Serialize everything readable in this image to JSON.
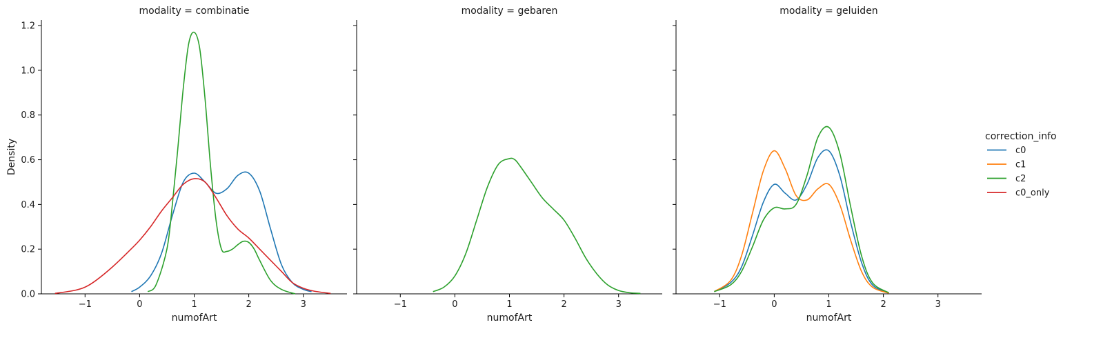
{
  "chart_data": {
    "type": "line",
    "kind": "kde",
    "facet_variable": "modality",
    "xlabel": "numofArt",
    "ylabel": "Density",
    "xlim": [
      -1.8,
      3.8
    ],
    "ylim": [
      0.0,
      1.225
    ],
    "xticks": [
      -1,
      0,
      1,
      2,
      3
    ],
    "yticks": [
      0.0,
      0.2,
      0.4,
      0.6,
      0.8,
      1.0,
      1.2
    ],
    "xtick_labels": [
      "−1",
      "0",
      "1",
      "2",
      "3"
    ],
    "ytick_labels": [
      "0.0",
      "0.2",
      "0.4",
      "0.6",
      "0.8",
      "1.0",
      "1.2"
    ],
    "shared_y": true,
    "grid": false,
    "legend": {
      "title": "correction_info",
      "placement": "right",
      "entries": [
        {
          "name": "c0",
          "color": "#1f77b4"
        },
        {
          "name": "c1",
          "color": "#ff7f0e"
        },
        {
          "name": "c2",
          "color": "#2ca02c"
        },
        {
          "name": "c0_only",
          "color": "#d62728"
        }
      ]
    },
    "panels": [
      {
        "title": "modality = combinatie",
        "series": [
          {
            "name": "c0",
            "color": "#1f77b4",
            "x": [
              -0.15,
              0.0,
              0.2,
              0.4,
              0.6,
              0.8,
              1.0,
              1.2,
              1.4,
              1.6,
              1.8,
              2.0,
              2.2,
              2.4,
              2.6,
              2.8,
              3.0,
              3.15
            ],
            "y": [
              0.01,
              0.03,
              0.08,
              0.18,
              0.35,
              0.5,
              0.54,
              0.5,
              0.45,
              0.47,
              0.53,
              0.54,
              0.46,
              0.29,
              0.13,
              0.05,
              0.02,
              0.01
            ]
          },
          {
            "name": "c2",
            "color": "#2ca02c",
            "x": [
              0.15,
              0.3,
              0.5,
              0.6,
              0.7,
              0.8,
              0.9,
              1.0,
              1.1,
              1.2,
              1.3,
              1.4,
              1.5,
              1.6,
              1.7,
              1.8,
              1.9,
              2.0,
              2.1,
              2.2,
              2.4,
              2.6,
              2.85
            ],
            "y": [
              0.01,
              0.04,
              0.2,
              0.4,
              0.65,
              0.92,
              1.12,
              1.17,
              1.1,
              0.87,
              0.57,
              0.33,
              0.2,
              0.19,
              0.2,
              0.22,
              0.235,
              0.23,
              0.2,
              0.15,
              0.06,
              0.02,
              0.0
            ]
          },
          {
            "name": "c0_only",
            "color": "#d62728",
            "x": [
              -1.55,
              -1.2,
              -1.0,
              -0.8,
              -0.5,
              -0.2,
              0.0,
              0.2,
              0.4,
              0.6,
              0.8,
              1.0,
              1.2,
              1.4,
              1.6,
              1.8,
              2.0,
              2.2,
              2.4,
              2.6,
              2.8,
              3.0,
              3.2,
              3.5
            ],
            "y": [
              0.002,
              0.015,
              0.03,
              0.06,
              0.12,
              0.19,
              0.24,
              0.3,
              0.37,
              0.43,
              0.49,
              0.515,
              0.5,
              0.43,
              0.35,
              0.29,
              0.25,
              0.2,
              0.15,
              0.1,
              0.05,
              0.025,
              0.012,
              0.002
            ]
          }
        ]
      },
      {
        "title": "modality = gebaren",
        "series": [
          {
            "name": "c2",
            "color": "#2ca02c",
            "x": [
              -0.4,
              -0.2,
              0.0,
              0.2,
              0.4,
              0.6,
              0.8,
              1.0,
              1.1,
              1.2,
              1.4,
              1.6,
              1.8,
              2.0,
              2.2,
              2.4,
              2.6,
              2.8,
              3.0,
              3.2,
              3.4
            ],
            "y": [
              0.01,
              0.03,
              0.08,
              0.18,
              0.33,
              0.48,
              0.58,
              0.605,
              0.6,
              0.57,
              0.5,
              0.43,
              0.38,
              0.33,
              0.25,
              0.16,
              0.09,
              0.04,
              0.015,
              0.005,
              0.002
            ]
          }
        ]
      },
      {
        "title": "modality = geluiden",
        "series": [
          {
            "name": "c0",
            "color": "#1f77b4",
            "x": [
              -1.1,
              -0.8,
              -0.6,
              -0.4,
              -0.2,
              0.0,
              0.2,
              0.4,
              0.6,
              0.8,
              1.0,
              1.2,
              1.4,
              1.6,
              1.8,
              2.1
            ],
            "y": [
              0.01,
              0.05,
              0.12,
              0.26,
              0.41,
              0.49,
              0.45,
              0.42,
              0.49,
              0.61,
              0.64,
              0.53,
              0.32,
              0.14,
              0.04,
              0.005
            ]
          },
          {
            "name": "c1",
            "color": "#ff7f0e",
            "x": [
              -1.1,
              -0.8,
              -0.6,
              -0.4,
              -0.2,
              0.0,
              0.2,
              0.4,
              0.6,
              0.8,
              1.0,
              1.2,
              1.4,
              1.6,
              1.8,
              2.1
            ],
            "y": [
              0.01,
              0.06,
              0.17,
              0.36,
              0.55,
              0.64,
              0.56,
              0.44,
              0.42,
              0.47,
              0.49,
              0.4,
              0.24,
              0.1,
              0.03,
              0.003
            ]
          },
          {
            "name": "c2",
            "color": "#2ca02c",
            "x": [
              -1.1,
              -0.8,
              -0.6,
              -0.4,
              -0.2,
              0.0,
              0.2,
              0.4,
              0.6,
              0.8,
              1.0,
              1.2,
              1.4,
              1.6,
              1.8,
              2.1
            ],
            "y": [
              0.01,
              0.04,
              0.1,
              0.21,
              0.33,
              0.385,
              0.38,
              0.4,
              0.53,
              0.7,
              0.745,
              0.63,
              0.39,
              0.17,
              0.05,
              0.005
            ]
          }
        ]
      }
    ]
  }
}
